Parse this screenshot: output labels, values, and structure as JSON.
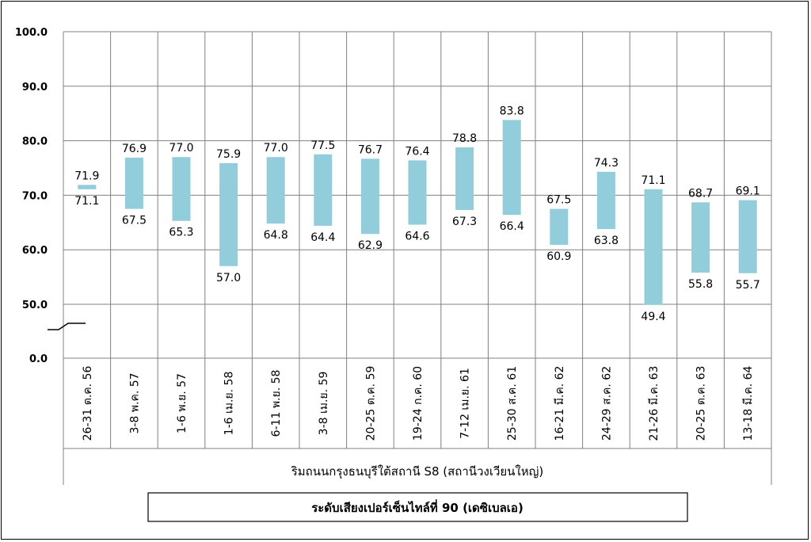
{
  "chart_data": {
    "type": "bar",
    "subtype": "floating-range",
    "categories": [
      "26-31 ต.ค. 56",
      "3-8 พ.ค. 57",
      "1-6 พ.ย. 57",
      "1-6 เม.ย. 58",
      "6-11 พ.ย. 58",
      "3-8 เม.ย. 59",
      "20-25 ต.ค. 59",
      "19-24 ก.ค. 60",
      "7-12 เม.ย. 61",
      "25-30 ส.ค. 61",
      "16-21 มี.ค. 62",
      "24-29 ส.ค. 62",
      "21-26 มี.ค. 63",
      "20-25 ต.ค. 63",
      "13-18 มี.ค. 64"
    ],
    "high": [
      71.9,
      76.9,
      77.0,
      75.9,
      77.0,
      77.5,
      76.7,
      76.4,
      78.8,
      83.8,
      67.5,
      74.3,
      71.1,
      68.7,
      69.1
    ],
    "low": [
      71.1,
      67.5,
      65.3,
      57.0,
      64.8,
      64.4,
      62.9,
      64.6,
      67.3,
      66.4,
      60.9,
      63.8,
      49.4,
      55.8,
      55.7
    ],
    "high_labels": [
      "71.9",
      "76.9",
      "77.0",
      "75.9",
      "77.0",
      "77.5",
      "76.7",
      "76.4",
      "78.8",
      "83.8",
      "67.5",
      "74.3",
      "71.1",
      "68.7",
      "69.1"
    ],
    "low_labels": [
      "71.1",
      "67.5",
      "65.3",
      "57.0",
      "64.8",
      "64.4",
      "62.9",
      "64.6",
      "67.3",
      "66.4",
      "60.9",
      "63.8",
      "49.4",
      "55.8",
      "55.7"
    ],
    "yticks": [
      0,
      50,
      60,
      70,
      80,
      90,
      100
    ],
    "ytick_labels": [
      "0.0",
      "50.0",
      "60.0",
      "70.0",
      "80.0",
      "90.0",
      "100.0"
    ],
    "ylim": [
      0,
      100
    ],
    "axis_break": true,
    "xlabel": "ริมถนนกรุงธนบุรีใต้สถานี S8 (สถานีวงเวียนใหญ่)",
    "legend": "ระดับเสียงเปอร์เซ็นไทล์ที่ 90 (เดซิเบลเอ)",
    "legend_position": "bottom",
    "grid": true,
    "colors": {
      "bar": "#92CDDC",
      "grid": "#808080"
    }
  }
}
